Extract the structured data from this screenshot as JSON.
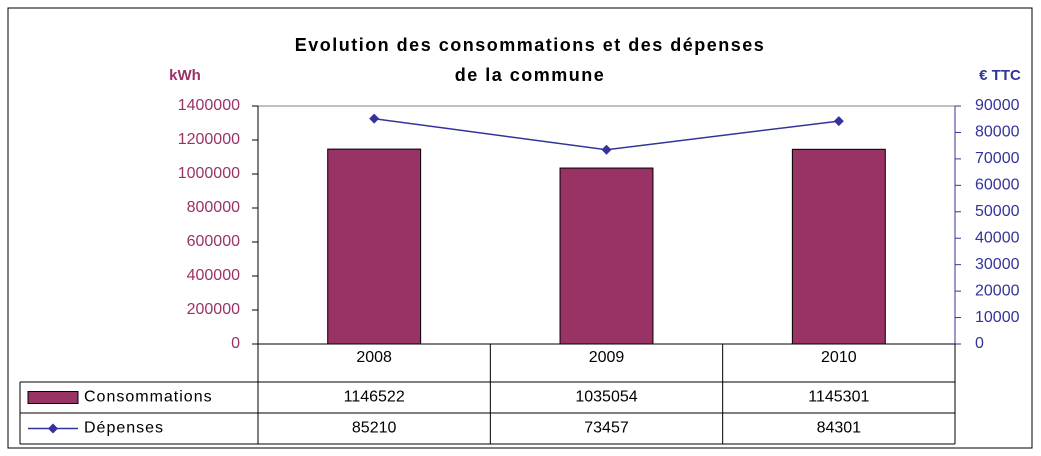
{
  "chart_data": {
    "type": "bar",
    "title": "Evolution des consommations et des dépenses de la commune",
    "ylabel": "kWh",
    "y2label": "€ TTC",
    "categories": [
      "2008",
      "2009",
      "2010"
    ],
    "series": [
      {
        "name": "Consommations",
        "color": "#993366",
        "type": "bar",
        "values": [
          1146522,
          1035054,
          1145301
        ]
      },
      {
        "name": "Dépenses",
        "color": "#333399",
        "type": "line",
        "axis": "y2",
        "values": [
          85210,
          73457,
          84301
        ]
      }
    ],
    "ylim": [
      0,
      1400000
    ],
    "yticks": [
      0,
      200000,
      400000,
      600000,
      800000,
      1000000,
      1200000,
      1400000
    ],
    "y2lim": [
      0,
      90000
    ],
    "y2ticks": [
      0,
      10000,
      20000,
      30000,
      40000,
      50000,
      60000,
      70000,
      80000,
      90000
    ],
    "legend": "table"
  }
}
